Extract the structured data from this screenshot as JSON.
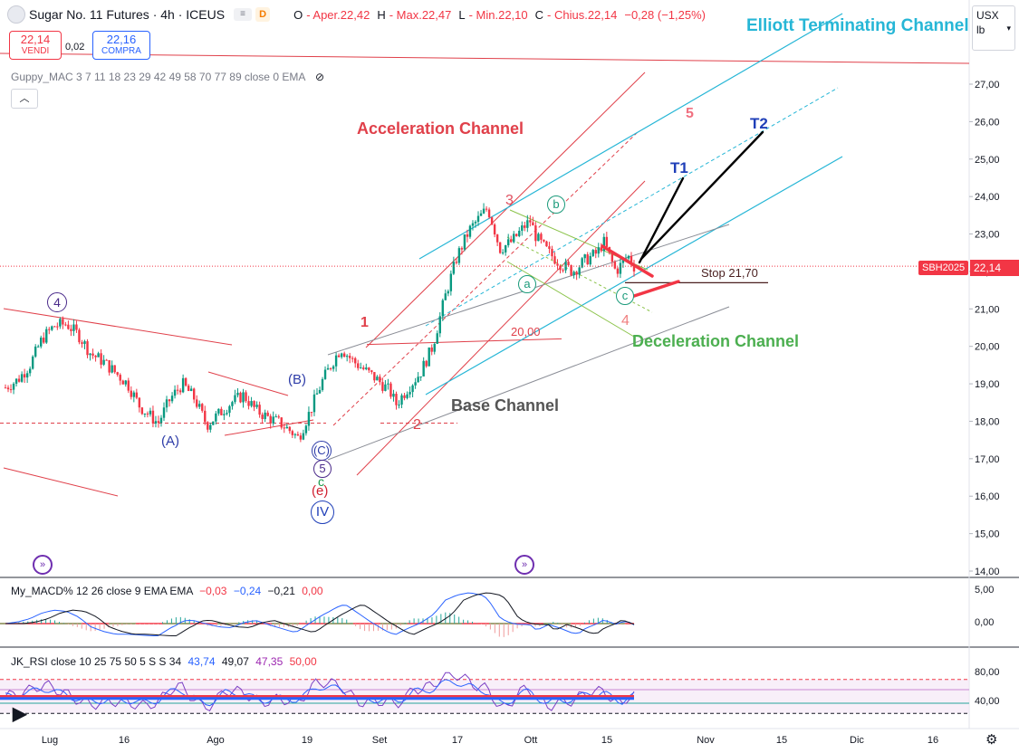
{
  "header": {
    "symbol": "Sugar No. 11 Futures · 4h · ICEUS",
    "badge": "D",
    "open_k": "O",
    "open_v": "- Aper.22,42",
    "high_k": "H",
    "high_v": "- Max.22,47",
    "low_k": "L",
    "low_v": "- Min.22,10",
    "close_k": "C",
    "close_v": "- Chius.22,14",
    "change": "−0,28 (−1,25%)",
    "sell_price": "22,14",
    "sell_label": "VENDI",
    "spread": "0,02",
    "buy_price": "22,16",
    "buy_label": "COMPRA",
    "guppy_label": "Guppy_MAC 3 7 11 18 23 29 42 49 58 70 77 89 close 0 EMA"
  },
  "units": {
    "currency": "USX",
    "unit": "lb"
  },
  "macd": {
    "label": "My_MACD% 12 26 close 9 EMA EMA",
    "v1": "−0,03",
    "v2": "−0,24",
    "v3": "−0,21",
    "v4": "0,00",
    "ticks": [
      "5,00",
      "0,00"
    ]
  },
  "rsi": {
    "label": "JK_RSI close 10 25 75 50 5 S S 34",
    "v1": "43,74",
    "v2": "49,07",
    "v3": "47,35",
    "v4": "50,00",
    "ticks": [
      "80,00",
      "40,00"
    ]
  },
  "ticker_tag": "SBH2025",
  "last_price": "22,14",
  "annotations": {
    "elliott": "Elliott Terminating Channel",
    "acceleration": "Acceleration Channel",
    "deceleration": "Deceleration Channel",
    "base": "Base Channel",
    "stop": "Stop 21,70",
    "level_20": "20,00",
    "t1": "T1",
    "t2": "T2",
    "wave_1": "1",
    "wave_2": "2",
    "wave_3": "3",
    "wave_4": "4",
    "wave_5": "5",
    "wave_a": "a",
    "wave_b": "b",
    "wave_c": "c",
    "wave_A": "(A)",
    "wave_B": "(B)",
    "wave_C": "(C)",
    "circ_4": "4",
    "circ_5": "5",
    "minor_c": "c",
    "paren_e": "(e)",
    "circ_IV": "IV"
  },
  "chart_data": {
    "type": "candlestick",
    "title": "Sugar No. 11 Futures · 4h · ICEUS",
    "y_ticks": [
      27,
      26,
      25,
      24,
      23,
      22,
      21,
      20,
      19,
      18,
      17,
      16,
      15,
      14
    ],
    "y_tick_labels": [
      "27,00",
      "26,00",
      "25,00",
      "24,00",
      "23,00",
      "22,00",
      "21,00",
      "20,00",
      "19,00",
      "18,00",
      "17,00",
      "16,00",
      "15,00",
      "14,00"
    ],
    "ylim": [
      13.7,
      28.5
    ],
    "x_tick_labels": [
      "Lug",
      "16",
      "Ago",
      "19",
      "Set",
      "17",
      "Ott",
      "15",
      "Nov",
      "15",
      "Dic",
      "16"
    ],
    "price_path": [
      {
        "t": 0,
        "p": 18.9
      },
      {
        "t": 2,
        "p": 19.1
      },
      {
        "t": 4,
        "p": 19.5
      },
      {
        "t": 6,
        "p": 20.2
      },
      {
        "t": 8,
        "p": 20.55
      },
      {
        "t": 10,
        "p": 20.6
      },
      {
        "t": 12,
        "p": 20.3
      },
      {
        "t": 14,
        "p": 19.8
      },
      {
        "t": 16,
        "p": 19.6
      },
      {
        "t": 18,
        "p": 19.3
      },
      {
        "t": 20,
        "p": 19.0
      },
      {
        "t": 22,
        "p": 18.4
      },
      {
        "t": 24,
        "p": 18.1
      },
      {
        "t": 25,
        "p": 17.95
      },
      {
        "t": 27,
        "p": 18.6
      },
      {
        "t": 29,
        "p": 19.0
      },
      {
        "t": 31,
        "p": 18.6
      },
      {
        "t": 33,
        "p": 17.9
      },
      {
        "t": 35,
        "p": 18.2
      },
      {
        "t": 37,
        "p": 18.5
      },
      {
        "t": 39,
        "p": 18.7
      },
      {
        "t": 41,
        "p": 18.3
      },
      {
        "t": 43,
        "p": 18.1
      },
      {
        "t": 45,
        "p": 17.95
      },
      {
        "t": 47,
        "p": 17.7
      },
      {
        "t": 48,
        "p": 17.55
      },
      {
        "t": 50,
        "p": 18.3
      },
      {
        "t": 52,
        "p": 19.1
      },
      {
        "t": 54,
        "p": 19.7
      },
      {
        "t": 55,
        "p": 19.95
      },
      {
        "t": 57,
        "p": 19.6
      },
      {
        "t": 59,
        "p": 19.35
      },
      {
        "t": 61,
        "p": 19.1
      },
      {
        "t": 63,
        "p": 18.8
      },
      {
        "t": 64,
        "p": 18.45
      },
      {
        "t": 66,
        "p": 18.9
      },
      {
        "t": 68,
        "p": 19.3
      },
      {
        "t": 70,
        "p": 20.0
      },
      {
        "t": 72,
        "p": 21.3
      },
      {
        "t": 74,
        "p": 22.4
      },
      {
        "t": 76,
        "p": 23.1
      },
      {
        "t": 78,
        "p": 23.5
      },
      {
        "t": 79,
        "p": 23.7
      },
      {
        "t": 80,
        "p": 23.2
      },
      {
        "t": 81,
        "p": 22.6
      },
      {
        "t": 83,
        "p": 22.8
      },
      {
        "t": 85,
        "p": 23.2
      },
      {
        "t": 86,
        "p": 23.35
      },
      {
        "t": 87,
        "p": 22.9
      },
      {
        "t": 89,
        "p": 22.5
      },
      {
        "t": 91,
        "p": 22.2
      },
      {
        "t": 93,
        "p": 22.0
      },
      {
        "t": 95,
        "p": 22.3
      },
      {
        "t": 97,
        "p": 22.5
      },
      {
        "t": 98,
        "p": 22.8
      },
      {
        "t": 99,
        "p": 22.4
      },
      {
        "t": 100,
        "p": 22.0
      },
      {
        "t": 101,
        "p": 22.2
      },
      {
        "t": 102,
        "p": 22.42
      },
      {
        "t": 103,
        "p": 22.14
      }
    ],
    "levels": [
      {
        "name": "Stop",
        "value": 21.7
      },
      {
        "name": "level",
        "value": 20.0
      },
      {
        "name": "last",
        "value": 22.14
      }
    ]
  }
}
